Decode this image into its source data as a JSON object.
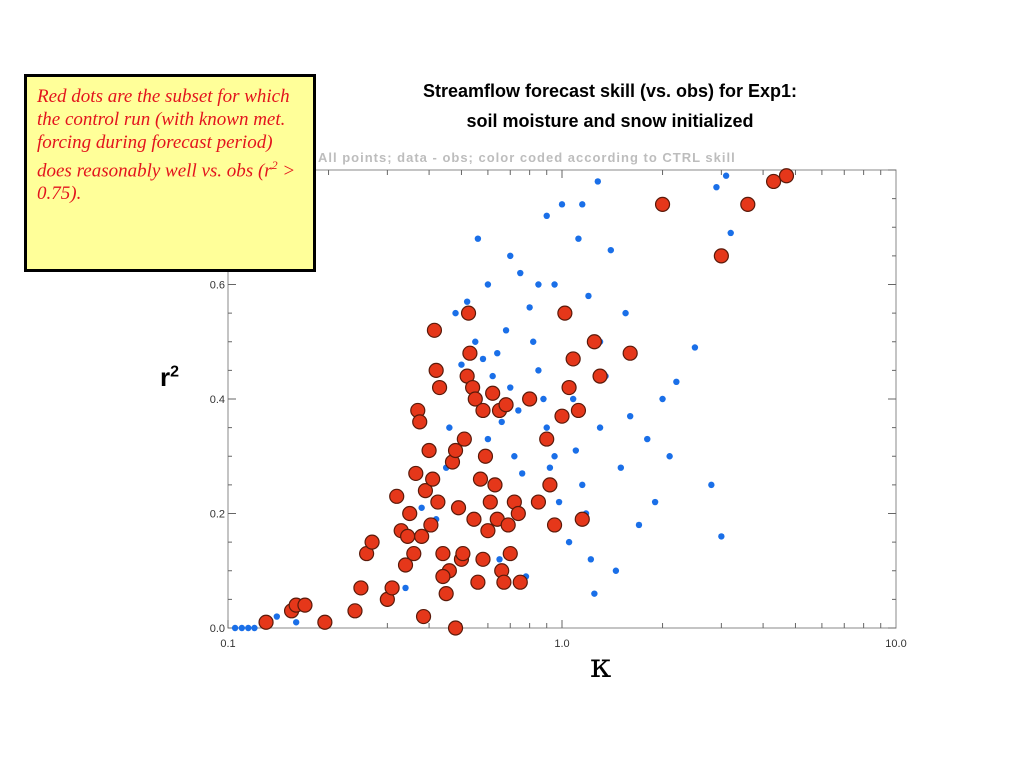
{
  "title_line1": "Streamflow forecast skill (vs. obs) for Exp1:",
  "title_line2": "soil moisture and snow initialized",
  "note": {
    "prefix": "Red dots are the subset for which the control run (with known met. forcing during forecast period) does reasonably well vs. obs (r",
    "sup": "2",
    "suffix": " > 0.75)."
  },
  "faded_subtitle": "All points; data - obs; color coded according to CTRL skill",
  "ylabel": {
    "text": "r",
    "sup": "2"
  },
  "xlabel": "κ",
  "colors": {
    "blue": "#1a6fe8",
    "red": "#e5371a",
    "red_edge": "#5a1a0a",
    "note_bg": "#ffff99",
    "note_text": "#e3141d"
  },
  "chart_data": {
    "type": "scatter",
    "x_scale": "log",
    "xlim": [
      0.1,
      10.0
    ],
    "ylim": [
      0.0,
      0.8
    ],
    "x_ticks": [
      "0.1",
      "1.0",
      "10.0"
    ],
    "y_ticks": [
      "0.0",
      "0.2",
      "0.4",
      "0.6"
    ],
    "grid": false,
    "series": [
      {
        "color": "blue",
        "points": [
          [
            0.105,
            0.0
          ],
          [
            0.11,
            0.0
          ],
          [
            0.115,
            0.0
          ],
          [
            0.12,
            0.0
          ],
          [
            0.14,
            0.02
          ],
          [
            0.16,
            0.01
          ],
          [
            0.2,
            0.01
          ],
          [
            0.34,
            0.07
          ],
          [
            0.36,
            0.16
          ],
          [
            0.38,
            0.21
          ],
          [
            0.4,
            0.24
          ],
          [
            0.42,
            0.19
          ],
          [
            0.45,
            0.28
          ],
          [
            0.46,
            0.35
          ],
          [
            0.48,
            0.55
          ],
          [
            0.5,
            0.46
          ],
          [
            0.52,
            0.57
          ],
          [
            0.55,
            0.5
          ],
          [
            0.58,
            0.47
          ],
          [
            0.6,
            0.33
          ],
          [
            0.62,
            0.44
          ],
          [
            0.64,
            0.48
          ],
          [
            0.66,
            0.36
          ],
          [
            0.68,
            0.52
          ],
          [
            0.7,
            0.42
          ],
          [
            0.72,
            0.3
          ],
          [
            0.74,
            0.38
          ],
          [
            0.76,
            0.27
          ],
          [
            0.8,
            0.56
          ],
          [
            0.82,
            0.5
          ],
          [
            0.85,
            0.45
          ],
          [
            0.88,
            0.4
          ],
          [
            0.9,
            0.35
          ],
          [
            0.92,
            0.28
          ],
          [
            0.95,
            0.6
          ],
          [
            0.98,
            0.22
          ],
          [
            1.02,
            0.55
          ],
          [
            1.05,
            0.47
          ],
          [
            1.08,
            0.4
          ],
          [
            1.1,
            0.31
          ],
          [
            1.12,
            0.68
          ],
          [
            1.15,
            0.25
          ],
          [
            1.18,
            0.2
          ],
          [
            1.2,
            0.58
          ],
          [
            1.22,
            0.12
          ],
          [
            1.25,
            0.06
          ],
          [
            1.28,
            0.78
          ],
          [
            1.3,
            0.35
          ],
          [
            1.35,
            0.44
          ],
          [
            1.4,
            0.66
          ],
          [
            1.45,
            0.1
          ],
          [
            1.5,
            0.28
          ],
          [
            1.55,
            0.55
          ],
          [
            1.6,
            0.37
          ],
          [
            1.7,
            0.18
          ],
          [
            1.8,
            0.33
          ],
          [
            1.9,
            0.22
          ],
          [
            2.0,
            0.4
          ],
          [
            2.1,
            0.3
          ],
          [
            2.2,
            0.43
          ],
          [
            2.5,
            0.49
          ],
          [
            2.8,
            0.25
          ],
          [
            2.9,
            0.77
          ],
          [
            3.0,
            0.16
          ],
          [
            3.1,
            0.79
          ],
          [
            3.2,
            0.69
          ],
          [
            0.6,
            0.6
          ],
          [
            0.56,
            0.68
          ],
          [
            0.85,
            0.6
          ],
          [
            1.0,
            0.74
          ],
          [
            0.7,
            0.65
          ],
          [
            0.75,
            0.62
          ],
          [
            1.15,
            0.74
          ],
          [
            0.9,
            0.72
          ],
          [
            1.3,
            0.5
          ],
          [
            0.95,
            0.3
          ],
          [
            1.05,
            0.15
          ],
          [
            0.65,
            0.12
          ],
          [
            0.78,
            0.09
          ]
        ]
      },
      {
        "color": "red",
        "points": [
          [
            0.13,
            0.01
          ],
          [
            0.155,
            0.03
          ],
          [
            0.16,
            0.04
          ],
          [
            0.17,
            0.04
          ],
          [
            0.195,
            0.01
          ],
          [
            0.24,
            0.03
          ],
          [
            0.25,
            0.07
          ],
          [
            0.26,
            0.13
          ],
          [
            0.27,
            0.15
          ],
          [
            0.3,
            0.05
          ],
          [
            0.31,
            0.07
          ],
          [
            0.32,
            0.23
          ],
          [
            0.33,
            0.17
          ],
          [
            0.34,
            0.11
          ],
          [
            0.345,
            0.16
          ],
          [
            0.35,
            0.2
          ],
          [
            0.36,
            0.13
          ],
          [
            0.365,
            0.27
          ],
          [
            0.37,
            0.38
          ],
          [
            0.375,
            0.36
          ],
          [
            0.38,
            0.16
          ],
          [
            0.385,
            0.02
          ],
          [
            0.39,
            0.24
          ],
          [
            0.4,
            0.31
          ],
          [
            0.405,
            0.18
          ],
          [
            0.41,
            0.26
          ],
          [
            0.415,
            0.52
          ],
          [
            0.42,
            0.45
          ],
          [
            0.425,
            0.22
          ],
          [
            0.43,
            0.42
          ],
          [
            0.44,
            0.13
          ],
          [
            0.45,
            0.06
          ],
          [
            0.46,
            0.1
          ],
          [
            0.47,
            0.29
          ],
          [
            0.48,
            0.31
          ],
          [
            0.49,
            0.21
          ],
          [
            0.5,
            0.12
          ],
          [
            0.505,
            0.13
          ],
          [
            0.51,
            0.33
          ],
          [
            0.52,
            0.44
          ],
          [
            0.525,
            0.55
          ],
          [
            0.53,
            0.48
          ],
          [
            0.54,
            0.42
          ],
          [
            0.545,
            0.19
          ],
          [
            0.55,
            0.4
          ],
          [
            0.56,
            0.08
          ],
          [
            0.57,
            0.26
          ],
          [
            0.58,
            0.12
          ],
          [
            0.59,
            0.3
          ],
          [
            0.6,
            0.17
          ],
          [
            0.61,
            0.22
          ],
          [
            0.62,
            0.41
          ],
          [
            0.63,
            0.25
          ],
          [
            0.64,
            0.19
          ],
          [
            0.65,
            0.38
          ],
          [
            0.66,
            0.1
          ],
          [
            0.67,
            0.08
          ],
          [
            0.68,
            0.39
          ],
          [
            0.69,
            0.18
          ],
          [
            0.7,
            0.13
          ],
          [
            0.72,
            0.22
          ],
          [
            0.74,
            0.2
          ],
          [
            0.75,
            0.08
          ],
          [
            0.8,
            0.4
          ],
          [
            0.85,
            0.22
          ],
          [
            0.9,
            0.33
          ],
          [
            0.92,
            0.25
          ],
          [
            0.95,
            0.18
          ],
          [
            1.0,
            0.37
          ],
          [
            1.02,
            0.55
          ],
          [
            1.05,
            0.42
          ],
          [
            1.08,
            0.47
          ],
          [
            1.12,
            0.38
          ],
          [
            1.15,
            0.19
          ],
          [
            1.25,
            0.5
          ],
          [
            1.3,
            0.44
          ],
          [
            1.6,
            0.48
          ],
          [
            2.0,
            0.74
          ],
          [
            3.0,
            0.65
          ],
          [
            3.6,
            0.74
          ],
          [
            4.3,
            0.78
          ],
          [
            4.7,
            0.79
          ],
          [
            0.44,
            0.09
          ],
          [
            0.48,
            0.0
          ],
          [
            0.58,
            0.38
          ]
        ]
      }
    ]
  }
}
